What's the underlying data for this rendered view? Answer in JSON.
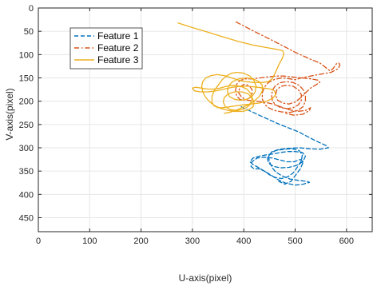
{
  "chart_data": {
    "type": "line",
    "xlabel": "U-axis(pixel)",
    "ylabel": "V-axis(pixel)",
    "xlim": [
      0,
      650
    ],
    "ylim": [
      0,
      480
    ],
    "y_reversed": true,
    "grid": true,
    "x_ticks": [
      0,
      100,
      200,
      300,
      400,
      500,
      600
    ],
    "y_ticks": [
      0,
      50,
      100,
      150,
      200,
      250,
      300,
      350,
      400,
      450
    ],
    "legend": "top-left",
    "series": [
      {
        "name": "Feature 1",
        "color": "#0072BD",
        "dash": "dashed",
        "points": [
          [
            395,
            212
          ],
          [
            430,
            230
          ],
          [
            470,
            250
          ],
          [
            505,
            265
          ],
          [
            540,
            285
          ],
          [
            560,
            295
          ],
          [
            565,
            300
          ],
          [
            548,
            303
          ],
          [
            528,
            302
          ],
          [
            508,
            300
          ],
          [
            488,
            301
          ],
          [
            470,
            303
          ],
          [
            455,
            308
          ],
          [
            448,
            318
          ],
          [
            450,
            330
          ],
          [
            455,
            342
          ],
          [
            462,
            352
          ],
          [
            474,
            360
          ],
          [
            490,
            367
          ],
          [
            506,
            370
          ],
          [
            522,
            372
          ],
          [
            528,
            374
          ],
          [
            516,
            378
          ],
          [
            500,
            380
          ],
          [
            482,
            376
          ],
          [
            466,
            368
          ],
          [
            452,
            358
          ],
          [
            440,
            350
          ],
          [
            428,
            342
          ],
          [
            418,
            336
          ],
          [
            412,
            330
          ],
          [
            418,
            322
          ],
          [
            430,
            318
          ],
          [
            444,
            315
          ],
          [
            458,
            313
          ],
          [
            472,
            310
          ],
          [
            486,
            308
          ],
          [
            500,
            308
          ],
          [
            514,
            310
          ],
          [
            520,
            318
          ],
          [
            515,
            330
          ],
          [
            502,
            338
          ],
          [
            488,
            342
          ],
          [
            472,
            343
          ],
          [
            458,
            340
          ],
          [
            448,
            333
          ],
          [
            446,
            322
          ],
          [
            452,
            312
          ],
          [
            462,
            306
          ],
          [
            478,
            303
          ],
          [
            494,
            302
          ],
          [
            508,
            306
          ],
          [
            514,
            315
          ],
          [
            512,
            328
          ],
          [
            504,
            342
          ],
          [
            496,
            354
          ],
          [
            486,
            362
          ],
          [
            474,
            366
          ],
          [
            462,
            364
          ],
          [
            450,
            358
          ],
          [
            440,
            350
          ],
          [
            430,
            345
          ],
          [
            420,
            345
          ],
          [
            414,
            340
          ],
          [
            416,
            330
          ],
          [
            426,
            322
          ],
          [
            440,
            320
          ],
          [
            456,
            322
          ],
          [
            470,
            326
          ],
          [
            484,
            330
          ],
          [
            498,
            330
          ],
          [
            510,
            325
          ],
          [
            516,
            330
          ],
          [
            510,
            345
          ],
          [
            500,
            360
          ],
          [
            492,
            372
          ],
          [
            480,
            378
          ],
          [
            468,
            372
          ]
        ]
      },
      {
        "name": "Feature 2",
        "color": "#D95319",
        "dash": "dashdot",
        "points": [
          [
            385,
            30
          ],
          [
            420,
            50
          ],
          [
            460,
            72
          ],
          [
            500,
            95
          ],
          [
            530,
            110
          ],
          [
            548,
            118
          ],
          [
            560,
            128
          ],
          [
            568,
            135
          ],
          [
            574,
            130
          ],
          [
            580,
            120
          ],
          [
            585,
            118
          ],
          [
            587,
            122
          ],
          [
            584,
            130
          ],
          [
            570,
            138
          ],
          [
            550,
            142
          ],
          [
            530,
            146
          ],
          [
            512,
            150
          ],
          [
            500,
            154
          ],
          [
            490,
            152
          ],
          [
            475,
            150
          ],
          [
            460,
            153
          ],
          [
            448,
            160
          ],
          [
            440,
            170
          ],
          [
            436,
            182
          ],
          [
            436,
            195
          ],
          [
            440,
            206
          ],
          [
            448,
            214
          ],
          [
            460,
            220
          ],
          [
            474,
            223
          ],
          [
            490,
            224
          ],
          [
            505,
            220
          ],
          [
            515,
            212
          ],
          [
            520,
            200
          ],
          [
            520,
            188
          ],
          [
            516,
            176
          ],
          [
            508,
            166
          ],
          [
            496,
            160
          ],
          [
            484,
            158
          ],
          [
            472,
            160
          ],
          [
            462,
            166
          ],
          [
            456,
            176
          ],
          [
            454,
            188
          ],
          [
            456,
            200
          ],
          [
            462,
            208
          ],
          [
            472,
            214
          ],
          [
            484,
            216
          ],
          [
            496,
            214
          ],
          [
            506,
            208
          ],
          [
            512,
            198
          ],
          [
            512,
            186
          ],
          [
            506,
            175
          ],
          [
            496,
            168
          ],
          [
            484,
            166
          ],
          [
            472,
            168
          ],
          [
            464,
            176
          ],
          [
            462,
            188
          ],
          [
            466,
            198
          ],
          [
            476,
            204
          ],
          [
            488,
            206
          ],
          [
            500,
            202
          ],
          [
            508,
            195
          ],
          [
            515,
            188
          ],
          [
            522,
            180
          ],
          [
            530,
            172
          ],
          [
            540,
            165
          ],
          [
            548,
            160
          ],
          [
            545,
            155
          ],
          [
            530,
            152
          ],
          [
            512,
            150
          ],
          [
            494,
            148
          ],
          [
            478,
            146
          ],
          [
            462,
            146
          ],
          [
            446,
            148
          ],
          [
            432,
            150
          ],
          [
            418,
            152
          ],
          [
            402,
            152
          ],
          [
            392,
            156
          ],
          [
            386,
            164
          ],
          [
            384,
            176
          ],
          [
            386,
            188
          ],
          [
            392,
            196
          ],
          [
            400,
            198
          ],
          [
            410,
            194
          ],
          [
            416,
            186
          ],
          [
            416,
            175
          ],
          [
            410,
            166
          ],
          [
            400,
            164
          ],
          [
            392,
            170
          ],
          [
            390,
            182
          ],
          [
            396,
            192
          ],
          [
            408,
            198
          ],
          [
            424,
            200
          ],
          [
            440,
            202
          ],
          [
            456,
            206
          ],
          [
            472,
            212
          ],
          [
            488,
            218
          ],
          [
            504,
            222
          ],
          [
            520,
            220
          ],
          [
            530,
            214
          ],
          [
            528,
            220
          ],
          [
            515,
            228
          ],
          [
            498,
            230
          ],
          [
            480,
            226
          ]
        ]
      },
      {
        "name": "Feature 3",
        "color": "#EDB120",
        "dash": "solid",
        "points": [
          [
            272,
            32
          ],
          [
            300,
            42
          ],
          [
            330,
            52
          ],
          [
            360,
            62
          ],
          [
            390,
            72
          ],
          [
            420,
            80
          ],
          [
            445,
            85
          ],
          [
            460,
            88
          ],
          [
            470,
            90
          ],
          [
            476,
            92
          ],
          [
            478,
            98
          ],
          [
            475,
            108
          ],
          [
            470,
            118
          ],
          [
            465,
            130
          ],
          [
            460,
            142
          ],
          [
            455,
            152
          ],
          [
            448,
            158
          ],
          [
            436,
            160
          ],
          [
            420,
            160
          ],
          [
            404,
            158
          ],
          [
            390,
            155
          ],
          [
            376,
            150
          ],
          [
            362,
            145
          ],
          [
            348,
            143
          ],
          [
            336,
            145
          ],
          [
            326,
            150
          ],
          [
            320,
            158
          ],
          [
            318,
            168
          ],
          [
            320,
            180
          ],
          [
            326,
            192
          ],
          [
            334,
            202
          ],
          [
            344,
            210
          ],
          [
            356,
            216
          ],
          [
            370,
            220
          ],
          [
            384,
            222
          ],
          [
            398,
            222
          ],
          [
            410,
            218
          ],
          [
            418,
            212
          ],
          [
            420,
            202
          ],
          [
            416,
            192
          ],
          [
            408,
            184
          ],
          [
            396,
            180
          ],
          [
            382,
            180
          ],
          [
            370,
            184
          ],
          [
            362,
            192
          ],
          [
            360,
            202
          ],
          [
            364,
            212
          ],
          [
            374,
            218
          ],
          [
            388,
            220
          ],
          [
            402,
            216
          ],
          [
            412,
            208
          ],
          [
            416,
            196
          ],
          [
            414,
            184
          ],
          [
            406,
            174
          ],
          [
            394,
            168
          ],
          [
            380,
            166
          ],
          [
            366,
            168
          ],
          [
            354,
            172
          ],
          [
            342,
            174
          ],
          [
            330,
            174
          ],
          [
            318,
            172
          ],
          [
            306,
            170
          ],
          [
            300,
            172
          ],
          [
            304,
            178
          ],
          [
            316,
            180
          ],
          [
            330,
            180
          ],
          [
            346,
            178
          ],
          [
            362,
            174
          ],
          [
            378,
            170
          ],
          [
            394,
            168
          ],
          [
            410,
            168
          ],
          [
            426,
            170
          ],
          [
            440,
            172
          ],
          [
            452,
            174
          ],
          [
            460,
            178
          ],
          [
            462,
            186
          ],
          [
            456,
            194
          ],
          [
            444,
            200
          ],
          [
            430,
            204
          ],
          [
            414,
            206
          ],
          [
            398,
            208
          ],
          [
            384,
            210
          ],
          [
            372,
            212
          ],
          [
            360,
            214
          ],
          [
            350,
            214
          ],
          [
            342,
            210
          ],
          [
            338,
            202
          ],
          [
            338,
            190
          ],
          [
            342,
            178
          ],
          [
            350,
            166
          ],
          [
            358,
            154
          ],
          [
            366,
            146
          ],
          [
            376,
            140
          ],
          [
            388,
            138
          ],
          [
            400,
            140
          ],
          [
            412,
            146
          ],
          [
            420,
            156
          ],
          [
            424,
            168
          ],
          [
            422,
            180
          ],
          [
            416,
            190
          ],
          [
            406,
            196
          ],
          [
            394,
            198
          ],
          [
            382,
            196
          ],
          [
            372,
            190
          ],
          [
            368,
            180
          ],
          [
            370,
            168
          ],
          [
            378,
            158
          ],
          [
            390,
            152
          ],
          [
            404,
            150
          ],
          [
            418,
            152
          ],
          [
            430,
            158
          ],
          [
            436,
            166
          ],
          [
            436,
            178
          ],
          [
            430,
            190
          ],
          [
            420,
            200
          ],
          [
            408,
            208
          ],
          [
            396,
            214
          ],
          [
            384,
            220
          ],
          [
            372,
            224
          ],
          [
            362,
            226
          ]
        ]
      }
    ]
  }
}
